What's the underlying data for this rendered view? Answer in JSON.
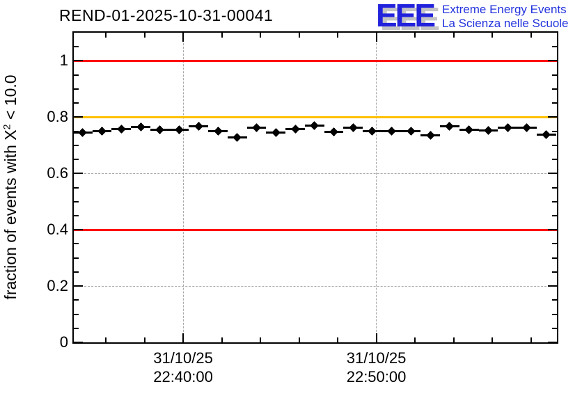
{
  "header": {
    "title": "REND-01-2025-10-31-00041",
    "logo": {
      "acronym": "EEE",
      "line1": "Extreme Energy Events",
      "line2": "La Scienza nelle Scuole",
      "color": "#2222dd"
    }
  },
  "chart_data": {
    "type": "scatter",
    "title": "REND-01-2025-10-31-00041",
    "ylabel": {
      "prefix": "fraction of events with X",
      "sup": "2",
      "suffix": " < 10.0"
    },
    "ylim": [
      0,
      1.1
    ],
    "grid": {
      "on": true,
      "color": "#a6a6a6",
      "style": "dashed"
    },
    "y_major_ticks": [
      {
        "value": 0,
        "label": "0"
      },
      {
        "value": 0.2,
        "label": "0.2"
      },
      {
        "value": 0.4,
        "label": "0.4"
      },
      {
        "value": 0.6,
        "label": "0.6"
      },
      {
        "value": 0.8,
        "label": "0.8"
      },
      {
        "value": 1,
        "label": "1"
      }
    ],
    "y_minor_step": 0.05,
    "x_axis": {
      "unit": "minutes relative to 22:40:00",
      "range_min": [
        -5.66,
        19.35
      ],
      "major_ticks": [
        {
          "t": 0,
          "label_line1": "31/10/25",
          "label_line2": "22:40:00"
        },
        {
          "t": 10,
          "label_line1": "31/10/25",
          "label_line2": "22:50:00"
        }
      ],
      "minor_ticks_t": [
        -4,
        -2,
        2,
        4,
        6,
        8,
        12,
        14,
        16,
        18
      ],
      "grid_t_values": [
        0,
        10
      ]
    },
    "grid_y_values": [
      0.2,
      0.4,
      0.6,
      0.8,
      1.0
    ],
    "reference_lines": [
      {
        "y": 1.0,
        "color": "#ff0000"
      },
      {
        "y": 0.8,
        "color": "#ffc000"
      },
      {
        "y": 0.4,
        "color": "#ff0000"
      }
    ],
    "series": [
      {
        "name": "fraction of events with chi2 < 10 per minute",
        "marker": "filled-diamond",
        "color": "#000000",
        "x_err_min": 0.5,
        "y_err": 0.008,
        "t_min": [
          -5.2,
          -4.2,
          -3.2,
          -2.2,
          -1.2,
          -0.2,
          0.8,
          1.8,
          2.8,
          3.8,
          4.8,
          5.8,
          6.8,
          7.8,
          8.8,
          9.8,
          10.8,
          11.8,
          12.8,
          13.8,
          14.8,
          15.8,
          16.8,
          17.8,
          18.8
        ],
        "values": [
          0.745,
          0.75,
          0.757,
          0.766,
          0.755,
          0.755,
          0.767,
          0.75,
          0.727,
          0.762,
          0.745,
          0.757,
          0.77,
          0.748,
          0.762,
          0.751,
          0.751,
          0.749,
          0.735,
          0.767,
          0.756,
          0.753,
          0.763,
          0.762,
          0.739
        ]
      }
    ]
  }
}
